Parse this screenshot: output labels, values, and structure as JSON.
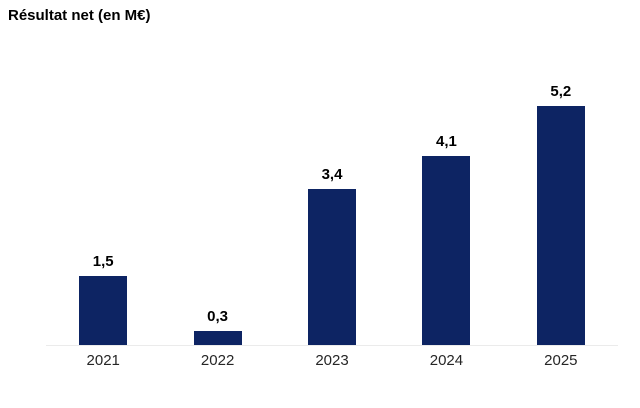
{
  "title": "Résultat net (en M€)",
  "colors": {
    "background": "#ffffff",
    "bar": "#0d2463",
    "title_text": "#000000",
    "value_label_text": "#000000",
    "category_label_text": "#262626",
    "axis_line": "#ebebeb"
  },
  "chart_data": {
    "type": "bar",
    "title": "Résultat net (en M€)",
    "categories": [
      "2021",
      "2022",
      "2023",
      "2024",
      "2025"
    ],
    "values": [
      1.5,
      0.3,
      3.4,
      4.1,
      5.2
    ],
    "value_labels": [
      "1,5",
      "0,3",
      "3,4",
      "4,1",
      "5,2"
    ],
    "xlabel": "",
    "ylabel": "",
    "ylim": [
      0,
      6
    ],
    "grid": false,
    "legend": false,
    "data_labels_position": "above-bar",
    "axis_line_visible": true
  }
}
